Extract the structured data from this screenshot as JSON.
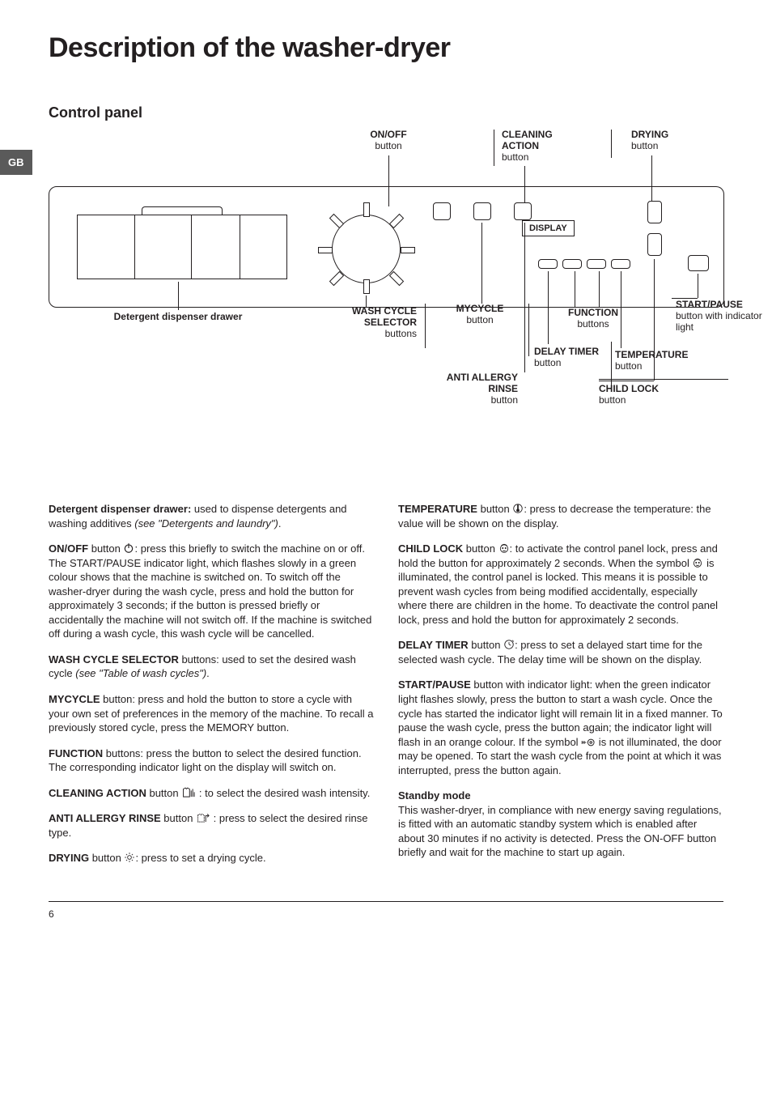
{
  "page_title": "Description of the washer-dryer",
  "side_tab": "GB",
  "subtitle": "Control panel",
  "page_number": "6",
  "labels": {
    "onoff": {
      "bold": "ON/OFF",
      "sub": "button"
    },
    "cleaning": {
      "bold": "CLEANING ACTION",
      "sub": "button"
    },
    "drying": {
      "bold": "DRYING",
      "sub": "button"
    },
    "display": "DISPLAY",
    "drawer": {
      "bold": "Detergent dispenser drawer"
    },
    "wash_selector": {
      "bold": "WASH CYCLE SELECTOR",
      "sub": "buttons"
    },
    "mycycle": {
      "bold": "MYCYCLE",
      "sub": "button"
    },
    "function": {
      "bold": "FUNCTION",
      "sub": "buttons"
    },
    "delay": {
      "bold": "DELAY TIMER",
      "sub": "button"
    },
    "anti": {
      "bold": "ANTI ALLERGY RINSE",
      "sub": "button"
    },
    "startpause": {
      "bold": "START/PAUSE",
      "sub": "button with indicator light"
    },
    "temperature": {
      "bold": "TEMPERATURE",
      "sub": "button"
    },
    "childlock": {
      "bold": "CHILD LOCK",
      "sub": "button"
    }
  },
  "body": {
    "left": [
      {
        "term": "Detergent dispenser drawer:",
        "rest": " used to dispense detergents and washing additives ",
        "ital": "(see \"Detergents and laundry\")",
        "end": "."
      },
      {
        "term": "ON/OFF",
        "rest": " button ",
        "icon": "power",
        "cont": ": press this briefly to switch the machine on or off. The START/PAUSE indicator light, which flashes slowly in a green colour shows that the machine is switched on. To switch off the washer-dryer during the wash cycle, press and hold the button for approximately 3 seconds; if the button is pressed briefly or accidentally the machine will not switch off. If the machine is switched off during a wash cycle, this wash cycle will be cancelled."
      },
      {
        "term": "WASH CYCLE SELECTOR",
        "rest": " buttons: used to set the desired wash cycle ",
        "ital": "(see \"Table of wash cycles\")",
        "end": "."
      },
      {
        "term": "MYCYCLE",
        "rest": " button: press and hold the button to store a cycle with your own set of preferences in the memory of the machine. To recall a previously stored cycle, press the MEMORY button."
      },
      {
        "term": "FUNCTION",
        "rest": " buttons: press the button to select the desired function. The corresponding indicator light on the display will switch on."
      },
      {
        "term": "CLEANING ACTION",
        "rest": " button ",
        "icon": "shirt-bars",
        "cont": " : to select the desired wash intensity."
      },
      {
        "term": "ANTI ALLERGY RINSE",
        "rest": " button ",
        "icon": "shirt-arrow",
        "cont": " : press to select the desired rinse type."
      },
      {
        "term": "DRYING",
        "rest": " button ",
        "icon": "sun",
        "cont": ": press to set a drying cycle."
      }
    ],
    "right": [
      {
        "term": "TEMPERATURE",
        "rest": " button ",
        "icon": "thermo",
        "cont": ": press to decrease the temperature: the value will be shown on the display."
      },
      {
        "term": "CHILD LOCK",
        "rest": " button ",
        "icon": "face",
        "cont": ": to activate the control panel lock, press and hold the button for approximately 2 seconds. When the symbol ",
        "icon2": "face",
        "cont2": " is illuminated, the control panel is locked. This means it is possible to prevent wash cycles from being modified accidentally, especially where there are children in the home. To deactivate the control panel lock, press and hold the button for approximately 2 seconds."
      },
      {
        "term": "DELAY TIMER",
        "rest": " button ",
        "icon": "clock",
        "cont": ": press to set a delayed start time for the selected wash cycle. The delay time will be shown on the display."
      },
      {
        "term": "START/PAUSE",
        "rest": " button with indicator light: when the green indicator light flashes slowly, press the button to start a wash cycle. Once the cycle has started the indicator light will remain lit in a fixed manner. To pause the wash cycle, press the button again; the indicator light will flash in an orange colour. If the symbol ",
        "icon": "door",
        "cont": " is not illuminated, the door may be opened. To start the wash cycle from the point at which it was interrupted, press the button again."
      },
      {
        "term": "Standby mode",
        "break": true,
        "rest": "This washer-dryer, in compliance with new energy saving regulations, is fitted with an automatic standby system which is enabled after about 30 minutes if no activity is detected. Press the ON-OFF button briefly and wait for the machine to start up again."
      }
    ]
  }
}
